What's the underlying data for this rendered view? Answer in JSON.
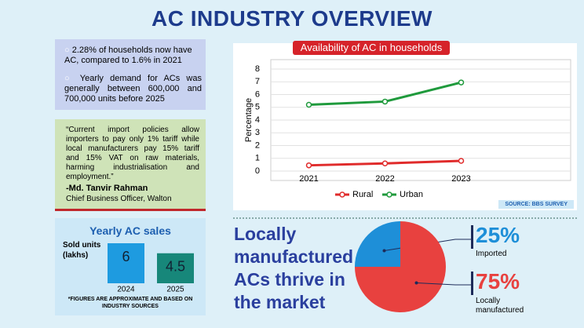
{
  "title": "AC INDUSTRY OVERVIEW",
  "facts": [
    "2.28% of households now have AC, compared to 1.6% in 2021",
    "Yearly demand for ACs was generally between 600,000 and 700,000 units before 2025"
  ],
  "quote": {
    "text": "“Current import policies allow importers to pay only 1% tariff while local manufacturers pay 15% tariff and 15% VAT on raw materials, harming industrialisation and employment.”",
    "author": "-Md. Tanvir Rahman",
    "role": "Chief Business Officer, Walton"
  },
  "headline": "Locally manufactured ACs thrive in the market",
  "footnote": "*FIGURES ARE APPROXIMATE AND BASED ON INDUSTRY SOURCES",
  "chart_data": [
    {
      "type": "line",
      "title": "Availability of AC in households",
      "y_label": "Percentage",
      "source": "SOURCE: BBS SURVEY",
      "categories": [
        "2021",
        "2022",
        "2023"
      ],
      "series": [
        {
          "name": "Rural",
          "color": "#e02b2b",
          "values": [
            0.45,
            0.6,
            0.8
          ]
        },
        {
          "name": "Urban",
          "color": "#1f9a3c",
          "values": [
            5.2,
            5.45,
            6.95
          ]
        }
      ],
      "ylim": [
        0,
        8
      ],
      "yticks": [
        0,
        1,
        2,
        3,
        4,
        5,
        6,
        7,
        8
      ],
      "grid": true
    },
    {
      "type": "bar",
      "title": "Yearly AC sales",
      "y_label": "Sold units (lakhs)",
      "categories": [
        "2024",
        "2025"
      ],
      "values": [
        6,
        4.5
      ],
      "colors": [
        "#1e9be0",
        "#17877a"
      ]
    },
    {
      "type": "pie",
      "categories": [
        "Imported",
        "Locally manufactured"
      ],
      "values": [
        25,
        75
      ],
      "value_labels": [
        "25%",
        "75%"
      ],
      "colors": [
        "#1e8fd8",
        "#e8413f"
      ]
    }
  ]
}
